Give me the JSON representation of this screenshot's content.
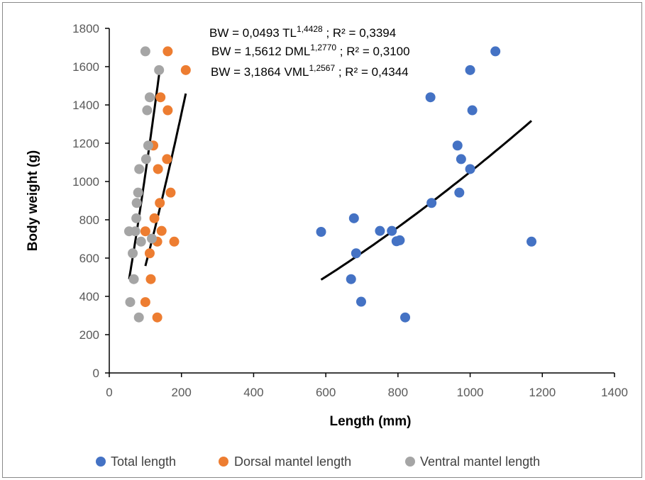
{
  "chart_data": {
    "type": "scatter",
    "xlabel": "Length (mm)",
    "ylabel": "Body weight (g)",
    "xlim": [
      0,
      1400
    ],
    "ylim": [
      0,
      1800
    ],
    "x_ticks": [
      0,
      200,
      400,
      600,
      800,
      1000,
      1200,
      1400
    ],
    "y_ticks": [
      0,
      200,
      400,
      600,
      800,
      1000,
      1200,
      1400,
      1600,
      1800
    ],
    "grid": false,
    "legend_position": "bottom",
    "equations": [
      {
        "main": "BW = 0,0493 TL",
        "exp": "1,4428",
        "tail": " ; R² = 0,3394"
      },
      {
        "main": "BW = 1,5612 DML",
        "exp": "1,2770",
        "tail": " ; R² = 0,3100"
      },
      {
        "main": "BW = 3,1864 VML",
        "exp": "1,2567",
        "tail": " ; R² = 0,4344"
      }
    ],
    "series": [
      {
        "name": "Total length",
        "color": "#4472C4",
        "points": [
          [
            587,
            737
          ],
          [
            670,
            490
          ],
          [
            678,
            808
          ],
          [
            684,
            625
          ],
          [
            698,
            372
          ],
          [
            750,
            742
          ],
          [
            783,
            742
          ],
          [
            796,
            688
          ],
          [
            805,
            693
          ],
          [
            820,
            290
          ],
          [
            890,
            1440
          ],
          [
            893,
            888
          ],
          [
            965,
            1188
          ],
          [
            970,
            942
          ],
          [
            975,
            1117
          ],
          [
            1000,
            1065
          ],
          [
            1000,
            1582
          ],
          [
            1006,
            1372
          ],
          [
            1070,
            1680
          ],
          [
            1170,
            686
          ]
        ],
        "trend": {
          "a": 0.0493,
          "b": 1.4428,
          "x_range": [
            587,
            1170
          ]
        }
      },
      {
        "name": "Dorsal mantel length",
        "color": "#ED7D31",
        "points": [
          [
            100,
            370
          ],
          [
            100,
            740
          ],
          [
            112,
            625
          ],
          [
            115,
            490
          ],
          [
            122,
            1188
          ],
          [
            125,
            808
          ],
          [
            133,
            686
          ],
          [
            133,
            290
          ],
          [
            135,
            1065
          ],
          [
            140,
            888
          ],
          [
            142,
            1440
          ],
          [
            145,
            742
          ],
          [
            160,
            1117
          ],
          [
            162,
            1372
          ],
          [
            162,
            1680
          ],
          [
            170,
            942
          ],
          [
            180,
            686
          ],
          [
            212,
            1582
          ]
        ],
        "trend": {
          "a": 1.5612,
          "b": 1.277,
          "x_range": [
            100,
            212
          ]
        }
      },
      {
        "name": "Ventral mantel length",
        "color": "#A5A5A5",
        "points": [
          [
            55,
            740
          ],
          [
            58,
            370
          ],
          [
            65,
            625
          ],
          [
            68,
            490
          ],
          [
            72,
            740
          ],
          [
            75,
            808
          ],
          [
            76,
            888
          ],
          [
            80,
            942
          ],
          [
            82,
            290
          ],
          [
            83,
            1065
          ],
          [
            88,
            686
          ],
          [
            100,
            1680
          ],
          [
            102,
            1117
          ],
          [
            105,
            1372
          ],
          [
            108,
            1188
          ],
          [
            112,
            1440
          ],
          [
            118,
            702
          ],
          [
            138,
            1582
          ]
        ],
        "trend": {
          "a": 3.1864,
          "b": 1.2567,
          "x_range": [
            55,
            138
          ]
        }
      }
    ]
  }
}
